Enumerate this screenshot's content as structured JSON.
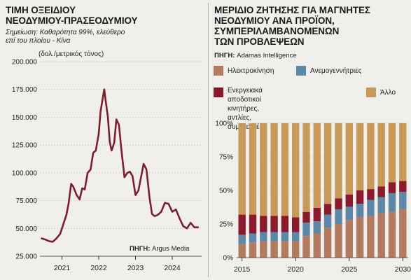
{
  "left_chart": {
    "title": "ΤΙΜΗ ΟΞΕΙΔΙΟΥ\nΝΕΟΔΥΜΙΟΥ-ΠΡΑΣΕΟΔΥΜΙΟΥ",
    "note": "Σημείωση: Καθαρότητα 99%, ελεύθερο\nεπί του πλοίου - Κίνα",
    "unit": "(δολ./μετρικός τόνος)",
    "source_label": "ΠΗΓΗ:",
    "source_value": "Argus Media"
  },
  "right_chart": {
    "title": "ΜΕΡΙΔΙΟ ΖΗΤΗΣΗΣ ΓΙΑ ΜΑΓΝΗΤΕΣ\nΝΕΟΔΥΜΙΟΥ ΑΝΑ ΠΡΟΪΟΝ,\nΣΥΜΠΕΡΙΛΑΜΒΑΝΟΜΕΝΩΝ\nΤΩΝ ΠΡΟΒΛΕΨΕΩΝ",
    "source_label": "ΠΗΓΗ:",
    "source_value": "Adamas Intelligence",
    "legend": [
      {
        "label": "Ηλεκτροκίνηση",
        "color": "#b27a5f"
      },
      {
        "label": "Ανεμογεννήτριες",
        "color": "#5d87a6"
      },
      {
        "label": "Ενεργειακά αποδοτικοί κινητήρες,\nαντλίες, συμπιεστές",
        "color": "#8b1a2c"
      },
      {
        "label": "Άλλο",
        "color": "#c79a5a"
      }
    ]
  },
  "chart_data": [
    {
      "type": "line",
      "title": "ΤΙΜΗ ΟΞΕΙΔΙΟΥ ΝΕΟΔΥΜΙΟΥ-ΠΡΑΣΕΟΔΥΜΙΟΥ",
      "ylabel": "(δολ./μετρικός τόνος)",
      "ylim": [
        25000,
        200000
      ],
      "y_ticks": [
        25000,
        50000,
        75000,
        100000,
        125000,
        150000,
        175000,
        200000
      ],
      "y_tick_labels": [
        "25.000",
        "50.000",
        "75.000",
        "100.000",
        "125.000",
        "150.000",
        "175.000",
        "200.000"
      ],
      "x_tick_labels": [
        "2021",
        "2022",
        "2023",
        "2024"
      ],
      "xlim": [
        2020.4,
        2024.8
      ],
      "grid": true,
      "color": "#7c1f2c",
      "x": [
        2020.45,
        2020.55,
        2020.65,
        2020.75,
        2020.85,
        2020.95,
        2021.05,
        2021.12,
        2021.18,
        2021.25,
        2021.3,
        2021.4,
        2021.48,
        2021.55,
        2021.62,
        2021.7,
        2021.78,
        2021.85,
        2021.92,
        2022.0,
        2022.05,
        2022.1,
        2022.15,
        2022.2,
        2022.25,
        2022.3,
        2022.35,
        2022.42,
        2022.48,
        2022.55,
        2022.62,
        2022.7,
        2022.78,
        2022.85,
        2022.92,
        2023.0,
        2023.08,
        2023.15,
        2023.22,
        2023.3,
        2023.38,
        2023.45,
        2023.52,
        2023.6,
        2023.7,
        2023.8,
        2023.9,
        2024.0,
        2024.1,
        2024.2,
        2024.3,
        2024.4,
        2024.5,
        2024.6,
        2024.7
      ],
      "y": [
        41000,
        40000,
        38500,
        38000,
        41000,
        45000,
        55000,
        62000,
        72000,
        90000,
        88000,
        80000,
        76000,
        86000,
        85000,
        100000,
        103000,
        118000,
        120000,
        135000,
        155000,
        165000,
        175000,
        162000,
        150000,
        128000,
        120000,
        127000,
        148000,
        143000,
        120000,
        96000,
        100000,
        101000,
        97000,
        80000,
        84000,
        96000,
        108000,
        103000,
        78000,
        63000,
        61000,
        62000,
        65000,
        73000,
        72000,
        65000,
        67000,
        59000,
        52000,
        50000,
        55000,
        51000,
        51000
      ]
    },
    {
      "type": "bar",
      "stacked": true,
      "title": "ΜΕΡΙΔΙΟ ΖΗΤΗΣΗΣ ΓΙΑ ΜΑΓΝΗΤΕΣ ΝΕΟΔΥΜΙΟΥ ΑΝΑ ΠΡΟΪΟΝ, ΣΥΜΠΕΡΙΛΑΜΒΑΝΟΜΕΝΩΝ ΤΩΝ ΠΡΟΒΛΕΨΕΩΝ",
      "ylim": [
        0,
        100
      ],
      "y_ticks": [
        0,
        25,
        50,
        75,
        100
      ],
      "y_tick_labels": [
        "0%",
        "25%",
        "50%",
        "75%",
        "100%"
      ],
      "x_tick_labels": [
        "2015",
        "2020",
        "2025",
        "2030"
      ],
      "categories": [
        2015,
        2016,
        2017,
        2018,
        2019,
        2020,
        2021,
        2022,
        2023,
        2024,
        2025,
        2026,
        2027,
        2028,
        2029,
        2030
      ],
      "series": [
        {
          "name": "Ηλεκτροκίνηση",
          "color": "#b27a5f",
          "values": [
            10,
            11,
            12,
            12,
            12,
            12,
            16,
            18,
            22,
            25,
            28,
            30,
            31,
            33,
            34,
            36
          ]
        },
        {
          "name": "Ανεμογεννήτριες",
          "color": "#5d87a6",
          "values": [
            7,
            7,
            7,
            7,
            7,
            7,
            10,
            9,
            10,
            11,
            10,
            10,
            12,
            12,
            14,
            13
          ]
        },
        {
          "name": "Ενεργειακά αποδοτικοί κινητήρες, αντλίες, συμπιεστές",
          "color": "#8b1a2c",
          "values": [
            15,
            14,
            12,
            12,
            12,
            11,
            8,
            10,
            8,
            8,
            9,
            10,
            8,
            8,
            8,
            8
          ]
        },
        {
          "name": "Άλλο",
          "color": "#c79a5a",
          "values": [
            68,
            68,
            69,
            69,
            69,
            70,
            66,
            63,
            60,
            56,
            53,
            50,
            49,
            47,
            44,
            43
          ]
        }
      ]
    }
  ]
}
